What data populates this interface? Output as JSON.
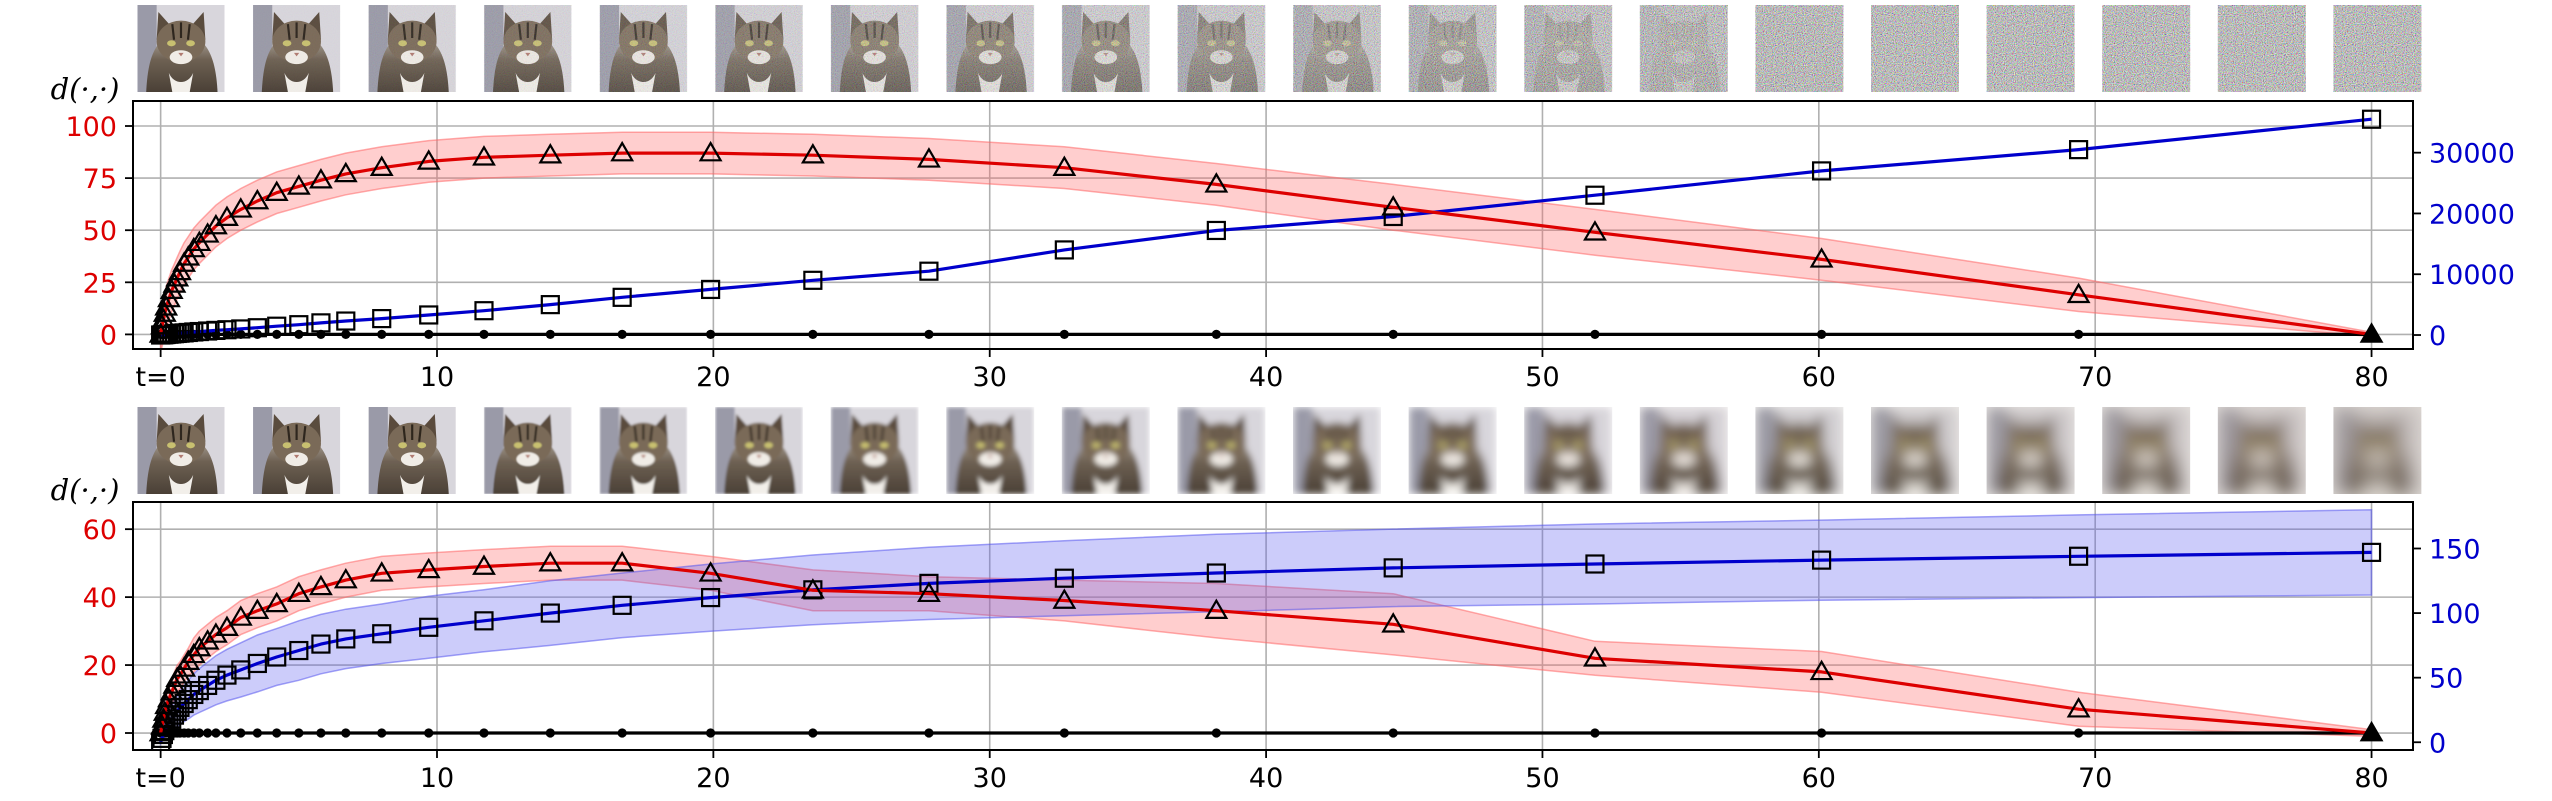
{
  "chart_data": [
    {
      "type": "line",
      "title": "",
      "ylabel_left": "d(·,·)",
      "xlabel": "",
      "thumbnail_effect": "noise",
      "thumbnail_count": 20,
      "x": [
        0,
        0.05,
        0.1,
        0.15,
        0.2,
        0.3,
        0.4,
        0.5,
        0.6,
        0.7,
        0.85,
        1.0,
        1.2,
        1.4,
        1.7,
        2.0,
        2.4,
        2.9,
        3.5,
        4.2,
        5.0,
        5.8,
        6.7,
        8.0,
        9.7,
        11.7,
        14.1,
        16.7,
        19.9,
        23.6,
        27.8,
        32.7,
        38.2,
        44.6,
        51.9,
        60.1,
        69.4,
        80.0
      ],
      "xlim": [
        -1,
        81.5
      ],
      "xticks": [
        0,
        10,
        20,
        30,
        40,
        50,
        60,
        70,
        80
      ],
      "xtick_labels": [
        "t=0",
        "10",
        "20",
        "30",
        "40",
        "50",
        "60",
        "70",
        "80"
      ],
      "ylim_left": [
        -7,
        112
      ],
      "yticks_left": [
        0,
        25,
        50,
        75,
        100
      ],
      "ylim_right": [
        -2300,
        38500
      ],
      "yticks_right": [
        0,
        10000,
        20000,
        30000
      ],
      "grid": true,
      "series": [
        {
          "name": "red",
          "color": "#dd0000",
          "marker": "triangle",
          "axis": "left",
          "band": [
            10,
            10,
            10,
            10,
            10,
            10,
            10,
            10,
            10,
            10,
            10,
            10,
            10,
            10,
            10,
            10,
            10,
            10,
            10,
            10,
            10,
            10,
            10,
            10,
            10,
            10,
            10,
            10,
            10,
            10,
            10,
            10,
            10,
            11,
            11,
            10,
            8,
            1
          ],
          "values": [
            0,
            4,
            7,
            10,
            13,
            17,
            21,
            24,
            27,
            30,
            34,
            37,
            41,
            44,
            48,
            52,
            56,
            60,
            64,
            68,
            71,
            74,
            77,
            80,
            83,
            85,
            86,
            87,
            87,
            86,
            84,
            80,
            72,
            61,
            49,
            36,
            19,
            0
          ]
        },
        {
          "name": "blue",
          "color": "#0000cc",
          "marker": "square",
          "axis": "right",
          "band": [],
          "values": [
            0,
            20,
            40,
            65,
            90,
            130,
            170,
            220,
            260,
            300,
            350,
            420,
            500,
            570,
            660,
            760,
            870,
            1000,
            1200,
            1450,
            1700,
            2000,
            2300,
            2700,
            3300,
            4000,
            5000,
            6200,
            7500,
            9000,
            10500,
            14000,
            17200,
            19500,
            23000,
            27000,
            30500,
            35500
          ]
        },
        {
          "name": "black",
          "color": "#000000",
          "marker": "dot",
          "axis": "left",
          "band": [],
          "values": [
            0,
            0,
            0,
            0,
            0,
            0,
            0,
            0,
            0,
            0,
            0,
            0,
            0,
            0,
            0,
            0,
            0,
            0,
            0,
            0,
            0,
            0,
            0,
            0,
            0,
            0,
            0,
            0,
            0,
            0,
            0,
            0,
            0,
            0,
            0,
            0,
            0,
            0
          ]
        }
      ]
    },
    {
      "type": "line",
      "title": "",
      "ylabel_left": "d(·,·)",
      "xlabel": "",
      "thumbnail_effect": "blur",
      "thumbnail_count": 20,
      "x": [
        0,
        0.05,
        0.1,
        0.15,
        0.2,
        0.3,
        0.4,
        0.5,
        0.6,
        0.7,
        0.85,
        1.0,
        1.2,
        1.4,
        1.7,
        2.0,
        2.4,
        2.9,
        3.5,
        4.2,
        5.0,
        5.8,
        6.7,
        8.0,
        9.7,
        11.7,
        14.1,
        16.7,
        19.9,
        23.6,
        27.8,
        32.7,
        38.2,
        44.6,
        51.9,
        60.1,
        69.4,
        80.0
      ],
      "xlim": [
        -1,
        81.5
      ],
      "xticks": [
        0,
        10,
        20,
        30,
        40,
        50,
        60,
        70,
        80
      ],
      "xtick_labels": [
        "t=0",
        "10",
        "20",
        "30",
        "40",
        "50",
        "60",
        "70",
        "80"
      ],
      "ylim_left": [
        -5,
        68
      ],
      "yticks_left": [
        0,
        20,
        40,
        60
      ],
      "ylim_right": [
        -6,
        186
      ],
      "yticks_right": [
        0,
        50,
        100,
        150
      ],
      "grid": true,
      "series": [
        {
          "name": "red",
          "color": "#dd0000",
          "marker": "triangle",
          "axis": "left",
          "band": [
            1,
            2,
            2,
            3,
            3,
            3,
            4,
            4,
            4,
            4,
            4,
            4,
            5,
            5,
            5,
            5,
            5,
            5,
            5,
            5,
            5,
            5,
            5,
            5,
            5,
            5,
            5,
            5,
            5,
            6,
            5,
            6,
            8,
            9,
            5,
            6,
            5,
            1
          ],
          "values": [
            0,
            2,
            4,
            6,
            8,
            10,
            12,
            14,
            16,
            17,
            19,
            21,
            23,
            25,
            27,
            29,
            31,
            34,
            36,
            38,
            41,
            43,
            45,
            47,
            48,
            49,
            50,
            50,
            47,
            42,
            41,
            39,
            36,
            32,
            22,
            18,
            7,
            0
          ]
        },
        {
          "name": "blue",
          "color": "#0000cc",
          "marker": "square",
          "axis": "right",
          "band": [
            1,
            2,
            4,
            5,
            6,
            8,
            10,
            11,
            12,
            13,
            14,
            15,
            16,
            17,
            18,
            19,
            20,
            21,
            22,
            22,
            23,
            23,
            23,
            23,
            24,
            24,
            25,
            25,
            26,
            27,
            28,
            29,
            30,
            30,
            31,
            31,
            32,
            33
          ],
          "values": [
            0,
            3,
            6,
            9,
            12,
            15,
            18,
            21,
            24,
            27,
            30,
            33,
            37,
            40,
            44,
            48,
            52,
            56,
            61,
            66,
            71,
            76,
            80,
            84,
            89,
            94,
            100,
            106,
            112,
            118,
            123,
            127,
            131,
            135,
            138,
            141,
            144,
            147
          ]
        },
        {
          "name": "black",
          "color": "#000000",
          "marker": "dot",
          "axis": "left",
          "band": [],
          "values": [
            0,
            0,
            0,
            0,
            0,
            0,
            0,
            0,
            0,
            0,
            0,
            0,
            0,
            0,
            0,
            0,
            0,
            0,
            0,
            0,
            0,
            0,
            0,
            0,
            0,
            0,
            0,
            0,
            0,
            0,
            0,
            0,
            0,
            0,
            0,
            0,
            0,
            0
          ]
        }
      ]
    }
  ]
}
